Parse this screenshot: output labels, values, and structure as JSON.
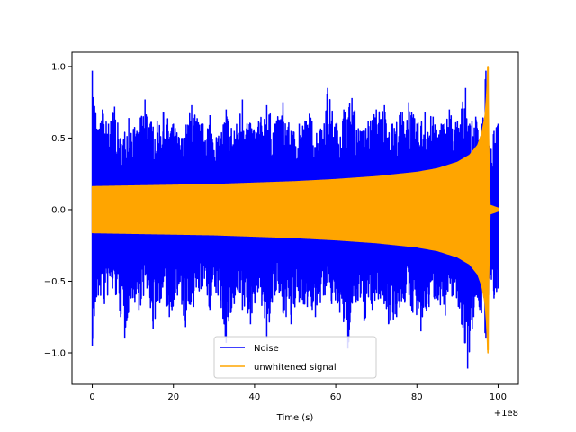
{
  "chart_data": {
    "type": "line",
    "title": "",
    "xlabel": "Time (s)",
    "ylabel": "",
    "x_offset_label": "+1e8",
    "xlim": [
      -5,
      105
    ],
    "ylim": [
      -1.22,
      1.1
    ],
    "x_ticks": [
      0,
      20,
      40,
      60,
      80,
      100
    ],
    "x_tick_labels": [
      "0",
      "20",
      "40",
      "60",
      "80",
      "100"
    ],
    "y_ticks": [
      -1.0,
      -0.5,
      0.0,
      0.5,
      1.0
    ],
    "y_tick_labels": [
      "−1.0",
      "−0.5",
      "0.0",
      "0.5",
      "1.0"
    ],
    "grid": false,
    "legend_position": "lower-center",
    "series": [
      {
        "name": "Noise",
        "color": "#0000ff",
        "x_range": [
          0,
          100
        ],
        "upper_envelope": [
          [
            0,
            0.97
          ],
          [
            1.5,
            0.55
          ],
          [
            2.5,
            0.7
          ],
          [
            4,
            0.6
          ],
          [
            5.5,
            0.72
          ],
          [
            7,
            0.5
          ],
          [
            9,
            0.64
          ],
          [
            11,
            0.55
          ],
          [
            13,
            0.77
          ],
          [
            15,
            0.58
          ],
          [
            17.5,
            0.68
          ],
          [
            20,
            0.6
          ],
          [
            22,
            0.5
          ],
          [
            24.5,
            0.73
          ],
          [
            27,
            0.6
          ],
          [
            29,
            0.66
          ],
          [
            31,
            0.5
          ],
          [
            33,
            0.7
          ],
          [
            35,
            0.55
          ],
          [
            37,
            0.77
          ],
          [
            39,
            0.6
          ],
          [
            41,
            0.62
          ],
          [
            43,
            0.73
          ],
          [
            45,
            0.6
          ],
          [
            47,
            0.75
          ],
          [
            49,
            0.55
          ],
          [
            51,
            0.6
          ],
          [
            53.5,
            0.67
          ],
          [
            56,
            0.55
          ],
          [
            58,
            0.85
          ],
          [
            60,
            0.6
          ],
          [
            62,
            0.7
          ],
          [
            64,
            0.78
          ],
          [
            66,
            0.55
          ],
          [
            68,
            0.62
          ],
          [
            70,
            0.7
          ],
          [
            72,
            0.73
          ],
          [
            74,
            0.6
          ],
          [
            76,
            0.68
          ],
          [
            78,
            0.75
          ],
          [
            80,
            0.6
          ],
          [
            82,
            0.68
          ],
          [
            84,
            0.65
          ],
          [
            86,
            0.6
          ],
          [
            88,
            0.7
          ],
          [
            90,
            0.62
          ],
          [
            92,
            0.85
          ],
          [
            93,
            0.6
          ],
          [
            94.5,
            0.65
          ],
          [
            96,
            0.6
          ],
          [
            97,
            0.97
          ],
          [
            98,
            0.4
          ],
          [
            99,
            0.55
          ],
          [
            100,
            0.6
          ]
        ],
        "lower_envelope": [
          [
            0,
            -0.95
          ],
          [
            1.5,
            -0.6
          ],
          [
            3,
            -0.66
          ],
          [
            5,
            -0.55
          ],
          [
            7,
            -0.75
          ],
          [
            8,
            -0.9
          ],
          [
            9.5,
            -0.62
          ],
          [
            11.5,
            -0.7
          ],
          [
            13.5,
            -0.55
          ],
          [
            15,
            -0.83
          ],
          [
            17,
            -0.62
          ],
          [
            19,
            -0.75
          ],
          [
            21,
            -0.6
          ],
          [
            23,
            -0.82
          ],
          [
            25,
            -0.68
          ],
          [
            27,
            -0.55
          ],
          [
            29,
            -0.7
          ],
          [
            31,
            -0.6
          ],
          [
            33,
            -0.93
          ],
          [
            35,
            -0.66
          ],
          [
            37,
            -0.7
          ],
          [
            39,
            -0.8
          ],
          [
            41,
            -0.55
          ],
          [
            43,
            -0.9
          ],
          [
            45,
            -0.6
          ],
          [
            47,
            -0.72
          ],
          [
            49,
            -0.8
          ],
          [
            51,
            -0.65
          ],
          [
            53,
            -0.68
          ],
          [
            55,
            -0.75
          ],
          [
            57,
            -0.6
          ],
          [
            59,
            -0.66
          ],
          [
            61,
            -0.72
          ],
          [
            63,
            -0.97
          ],
          [
            65,
            -0.65
          ],
          [
            67,
            -0.78
          ],
          [
            69,
            -0.7
          ],
          [
            71,
            -0.62
          ],
          [
            73,
            -0.8
          ],
          [
            75,
            -0.75
          ],
          [
            77,
            -0.65
          ],
          [
            79,
            -0.72
          ],
          [
            81,
            -0.85
          ],
          [
            83,
            -0.68
          ],
          [
            85,
            -0.62
          ],
          [
            87,
            -0.74
          ],
          [
            89,
            -0.6
          ],
          [
            91,
            -0.8
          ],
          [
            92.5,
            -1.11
          ],
          [
            94,
            -0.75
          ],
          [
            95.5,
            -0.7
          ],
          [
            97,
            -0.9
          ],
          [
            98,
            -0.45
          ],
          [
            99,
            -0.62
          ],
          [
            100,
            -0.55
          ]
        ]
      },
      {
        "name": "unwhitened signal",
        "color": "#ffa500",
        "x_range": [
          0,
          100
        ],
        "amplitude_envelope": [
          [
            0,
            0.16
          ],
          [
            10,
            0.165
          ],
          [
            20,
            0.17
          ],
          [
            30,
            0.175
          ],
          [
            40,
            0.185
          ],
          [
            50,
            0.195
          ],
          [
            60,
            0.21
          ],
          [
            70,
            0.23
          ],
          [
            80,
            0.26
          ],
          [
            85,
            0.285
          ],
          [
            90,
            0.33
          ],
          [
            93,
            0.38
          ],
          [
            95,
            0.45
          ],
          [
            96,
            0.53
          ],
          [
            96.8,
            0.65
          ],
          [
            97.2,
            0.8
          ],
          [
            97.5,
            1.0
          ],
          [
            97.7,
            0.4
          ],
          [
            98,
            0.03
          ],
          [
            99,
            0.02
          ],
          [
            100,
            0.01
          ]
        ],
        "peak": {
          "x": 97.5,
          "max": 1.0,
          "min": -0.98
        }
      }
    ]
  }
}
